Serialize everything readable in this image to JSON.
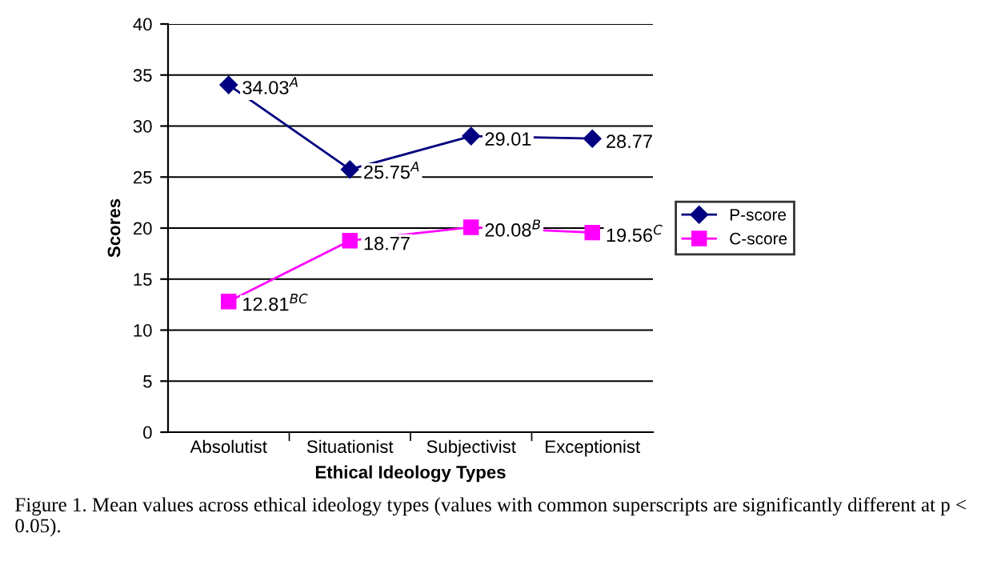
{
  "chart_data": {
    "type": "line",
    "xlabel": "Ethical Ideology Types",
    "ylabel": "Scores",
    "categories": [
      "Absolutist",
      "Situationist",
      "Subjectivist",
      "Exceptionist"
    ],
    "series": [
      {
        "name": "P-score",
        "color": "#000080",
        "marker": "diamond",
        "values": [
          34.03,
          25.75,
          29.01,
          28.77
        ],
        "value_labels": [
          "34.03$^{A}$",
          "25.75$^{A}$",
          "29.01",
          "28.77"
        ]
      },
      {
        "name": "C-score",
        "color": "#ff00ff",
        "marker": "square",
        "values": [
          12.81,
          18.77,
          20.08,
          19.56
        ],
        "value_labels": [
          "12.81$^{BC}$",
          "18.77",
          "20.08$^{B}$",
          "19.56$^{C}$"
        ]
      }
    ],
    "ylim": [
      0,
      40
    ],
    "yticks": [
      0,
      5,
      10,
      15,
      20,
      25,
      30,
      35,
      40
    ],
    "grid": "y",
    "legend": "right",
    "annotations": [
      "Figure 1. Mean values across ethical ideology types (values with common superscripts are significantly different at p < 0.05)."
    ]
  }
}
